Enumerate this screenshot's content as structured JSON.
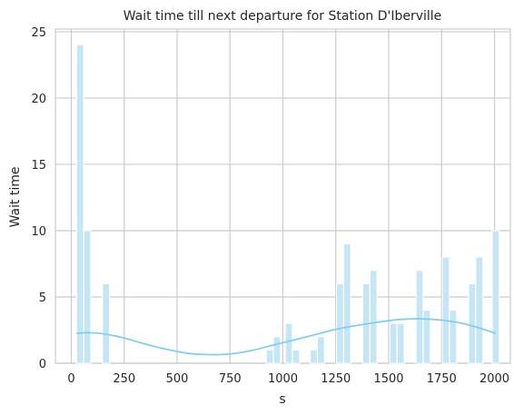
{
  "chart_data": {
    "type": "bar",
    "title": "Wait time till next departure for Station D'Iberville",
    "xlabel": "s",
    "ylabel": "Wait time",
    "xlim": [
      -75,
      2075
    ],
    "ylim": [
      0,
      25.2
    ],
    "xticks": [
      0,
      250,
      500,
      750,
      1000,
      1250,
      1500,
      1750,
      2000
    ],
    "yticks": [
      0,
      5,
      10,
      15,
      20,
      25
    ],
    "grid": true,
    "bin_width": 33,
    "bars": [
      {
        "x": 42,
        "value": 24
      },
      {
        "x": 76,
        "value": 10
      },
      {
        "x": 164,
        "value": 6
      },
      {
        "x": 938,
        "value": 1
      },
      {
        "x": 972,
        "value": 2
      },
      {
        "x": 1028,
        "value": 3
      },
      {
        "x": 1062,
        "value": 1
      },
      {
        "x": 1146,
        "value": 1
      },
      {
        "x": 1180,
        "value": 2
      },
      {
        "x": 1270,
        "value": 6
      },
      {
        "x": 1304,
        "value": 9
      },
      {
        "x": 1394,
        "value": 6
      },
      {
        "x": 1428,
        "value": 7
      },
      {
        "x": 1522,
        "value": 3
      },
      {
        "x": 1556,
        "value": 3
      },
      {
        "x": 1646,
        "value": 7
      },
      {
        "x": 1680,
        "value": 4
      },
      {
        "x": 1770,
        "value": 8
      },
      {
        "x": 1804,
        "value": 4
      },
      {
        "x": 1894,
        "value": 6
      },
      {
        "x": 1928,
        "value": 8
      },
      {
        "x": 2006,
        "value": 10
      }
    ],
    "kde": {
      "x": [
        25,
        80,
        160,
        250,
        350,
        450,
        550,
        650,
        750,
        850,
        950,
        1050,
        1150,
        1250,
        1350,
        1450,
        1550,
        1650,
        1750,
        1850,
        1950,
        2006
      ],
      "y": [
        2.25,
        2.3,
        2.2,
        1.9,
        1.45,
        1.05,
        0.75,
        0.65,
        0.7,
        0.95,
        1.35,
        1.75,
        2.15,
        2.55,
        2.85,
        3.1,
        3.3,
        3.35,
        3.25,
        3.0,
        2.55,
        2.25
      ]
    },
    "colors": {
      "bar_fill": "#c6e6f3",
      "bar_edge": "#ffffff",
      "kde_line": "#87ceeb",
      "grid": "#cccccc",
      "text": "#262626"
    }
  }
}
